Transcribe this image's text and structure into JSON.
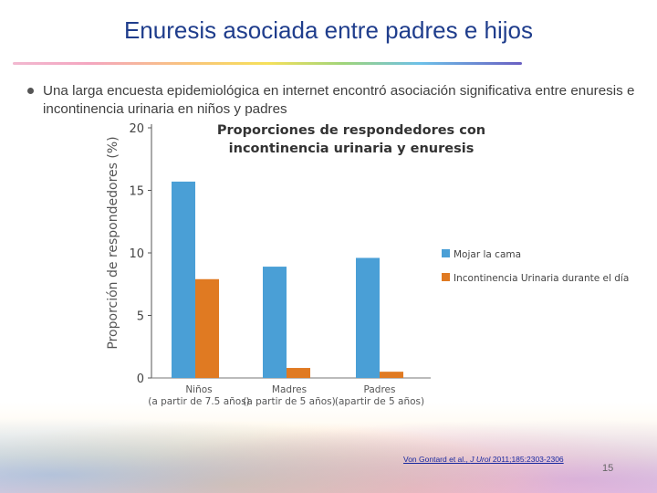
{
  "slide": {
    "title": "Enuresis asociada entre padres e hijos",
    "bullet": "Una larga encuesta epidemiológica en internet encontró asociación significativa entre enuresis e incontinencia urinaria en niños y padres",
    "reference_authors": "Von Gontard et al., ",
    "reference_journal": "J Urol",
    "reference_details": " 2011;185:2303-2306",
    "page_number": "15"
  },
  "colors": {
    "title": "#1f3d8c",
    "series_blue": "#4a9fd6",
    "series_orange": "#e07a22"
  },
  "chart_data": {
    "type": "bar",
    "title_lines": [
      "Proporciones de respondedores con",
      "incontinencia urinaria y enuresis"
    ],
    "ylabel": "Proporción de respondedores (%)",
    "ylim": [
      0,
      20
    ],
    "yticks": [
      "0",
      "5",
      "10",
      "15",
      "20"
    ],
    "categories": [
      "Niños",
      "Madres",
      "Padres"
    ],
    "category_sublabels": [
      "(a partir de 7.5 años)",
      "(a partir de 5 años)",
      "(apartir de 5 años)"
    ],
    "series": [
      {
        "name": "Mojar la cama",
        "values": [
          15.7,
          8.9,
          9.6
        ]
      },
      {
        "name": "Incontinencia Urinaria durante el día",
        "values": [
          7.9,
          0.8,
          0.5
        ]
      }
    ],
    "legend_position": "right"
  }
}
